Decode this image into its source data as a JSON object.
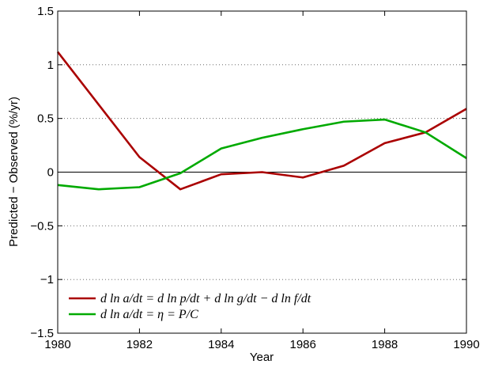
{
  "chart_data": {
    "type": "line",
    "x_label": "Year",
    "y_label": "Predicted − Observed (%/yr)",
    "x": [
      1980,
      1981,
      1982,
      1983,
      1984,
      1985,
      1986,
      1987,
      1988,
      1989,
      1990
    ],
    "series": [
      {
        "name": "d ln a/dt = d ln p/dt + d ln g/dt − d ln f/dt",
        "color": "#aa0000",
        "values": [
          1.12,
          0.63,
          0.14,
          -0.16,
          -0.02,
          0.0,
          -0.05,
          0.06,
          0.27,
          0.37,
          0.59
        ]
      },
      {
        "name": "d ln a/dt = η = P/C",
        "color": "#00aa00",
        "values": [
          -0.12,
          -0.16,
          -0.14,
          -0.01,
          0.22,
          0.32,
          0.4,
          0.47,
          0.49,
          0.37,
          0.13
        ]
      }
    ],
    "xlim": [
      1980,
      1990
    ],
    "xticks": [
      1980,
      1982,
      1984,
      1986,
      1988,
      1990
    ],
    "ylim": [
      -1.5,
      1.5
    ],
    "yticks": [
      {
        "value": -1.5,
        "label": "−1.5"
      },
      {
        "value": -1,
        "label": "−1"
      },
      {
        "value": -0.5,
        "label": "−0.5"
      },
      0,
      0.5,
      1,
      1.5
    ],
    "grid": true,
    "legend": "lower left"
  }
}
